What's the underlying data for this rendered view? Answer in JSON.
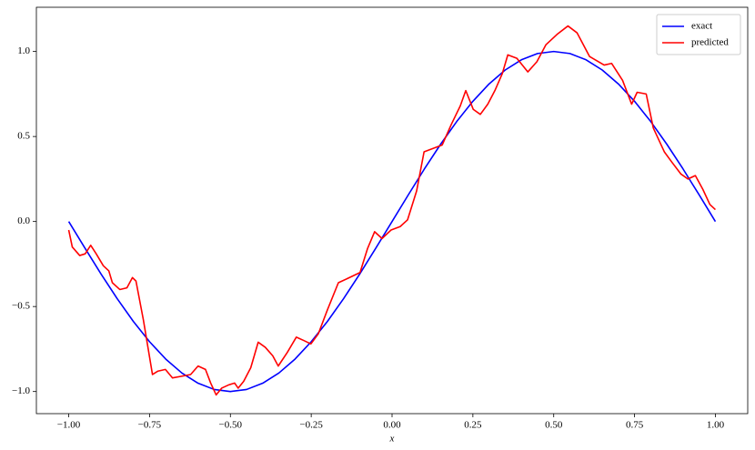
{
  "chart_data": {
    "type": "line",
    "x_label": "x",
    "xlim": [
      -1.1,
      1.1
    ],
    "ylim": [
      -1.13,
      1.26
    ],
    "xticks": [
      {
        "value": -1.0,
        "label": "−1.00"
      },
      {
        "value": -0.75,
        "label": "−0.75"
      },
      {
        "value": -0.5,
        "label": "−0.50"
      },
      {
        "value": -0.25,
        "label": "−0.25"
      },
      {
        "value": 0.0,
        "label": "0.00"
      },
      {
        "value": 0.25,
        "label": "0.25"
      },
      {
        "value": 0.5,
        "label": "0.50"
      },
      {
        "value": 0.75,
        "label": "0.75"
      },
      {
        "value": 1.0,
        "label": "1.00"
      }
    ],
    "yticks": [
      {
        "value": -1.0,
        "label": "−1.0"
      },
      {
        "value": -0.5,
        "label": "−0.5"
      },
      {
        "value": 0.0,
        "label": "0.0"
      },
      {
        "value": 0.5,
        "label": "0.5"
      },
      {
        "value": 1.0,
        "label": "1.0"
      }
    ],
    "legend": "upper right",
    "series": [
      {
        "name": "exact",
        "color": "#0000ff",
        "x": [
          -1,
          -0.95,
          -0.9,
          -0.85,
          -0.8,
          -0.75,
          -0.7,
          -0.65,
          -0.6,
          -0.55,
          -0.5,
          -0.45,
          -0.4,
          -0.35,
          -0.3,
          -0.25,
          -0.2,
          -0.15,
          -0.1,
          -0.05,
          0,
          0.05,
          0.1,
          0.15,
          0.2,
          0.25,
          0.3,
          0.35,
          0.4,
          0.45,
          0.5,
          0.55,
          0.6,
          0.65,
          0.7,
          0.75,
          0.8,
          0.85,
          0.9,
          0.95,
          1
        ],
        "values": [
          0,
          -0.156,
          -0.309,
          -0.454,
          -0.588,
          -0.707,
          -0.809,
          -0.891,
          -0.951,
          -0.988,
          -1,
          -0.988,
          -0.951,
          -0.891,
          -0.809,
          -0.707,
          -0.588,
          -0.454,
          -0.309,
          -0.156,
          0,
          0.156,
          0.309,
          0.454,
          0.588,
          0.707,
          0.809,
          0.891,
          0.951,
          0.988,
          1,
          0.988,
          0.951,
          0.891,
          0.809,
          0.707,
          0.588,
          0.454,
          0.309,
          0.156,
          0
        ]
      },
      {
        "name": "predicted",
        "color": "#ff0000",
        "x": [
          -1.0,
          -0.989,
          -0.966,
          -0.949,
          -0.932,
          -0.915,
          -0.893,
          -0.876,
          -0.865,
          -0.842,
          -0.82,
          -0.803,
          -0.792,
          -0.769,
          -0.741,
          -0.724,
          -0.701,
          -0.679,
          -0.651,
          -0.623,
          -0.6,
          -0.577,
          -0.561,
          -0.544,
          -0.527,
          -0.504,
          -0.487,
          -0.476,
          -0.459,
          -0.437,
          -0.414,
          -0.392,
          -0.369,
          -0.352,
          -0.324,
          -0.296,
          -0.273,
          -0.251,
          -0.228,
          -0.2,
          -0.166,
          -0.132,
          -0.099,
          -0.076,
          -0.054,
          -0.031,
          -0.003,
          0.025,
          0.048,
          0.076,
          0.099,
          0.127,
          0.155,
          0.183,
          0.211,
          0.228,
          0.251,
          0.273,
          0.296,
          0.318,
          0.341,
          0.358,
          0.386,
          0.42,
          0.448,
          0.476,
          0.51,
          0.544,
          0.572,
          0.611,
          0.656,
          0.679,
          0.713,
          0.741,
          0.758,
          0.786,
          0.808,
          0.842,
          0.865,
          0.893,
          0.915,
          0.938,
          0.961,
          0.983,
          1.0
        ],
        "values": [
          -0.05,
          -0.15,
          -0.2,
          -0.19,
          -0.14,
          -0.19,
          -0.26,
          -0.29,
          -0.36,
          -0.4,
          -0.39,
          -0.33,
          -0.35,
          -0.58,
          -0.9,
          -0.88,
          -0.87,
          -0.92,
          -0.91,
          -0.9,
          -0.85,
          -0.87,
          -0.95,
          -1.02,
          -0.98,
          -0.96,
          -0.95,
          -0.98,
          -0.94,
          -0.86,
          -0.71,
          -0.74,
          -0.79,
          -0.85,
          -0.77,
          -0.68,
          -0.7,
          -0.72,
          -0.66,
          -0.52,
          -0.36,
          -0.33,
          -0.3,
          -0.16,
          -0.06,
          -0.1,
          -0.05,
          -0.03,
          0.01,
          0.18,
          0.41,
          0.43,
          0.45,
          0.57,
          0.68,
          0.77,
          0.66,
          0.63,
          0.69,
          0.77,
          0.87,
          0.98,
          0.96,
          0.88,
          0.94,
          1.04,
          1.1,
          1.15,
          1.11,
          0.97,
          0.92,
          0.93,
          0.83,
          0.69,
          0.76,
          0.75,
          0.55,
          0.41,
          0.35,
          0.28,
          0.25,
          0.27,
          0.19,
          0.1,
          0.07
        ]
      }
    ]
  }
}
